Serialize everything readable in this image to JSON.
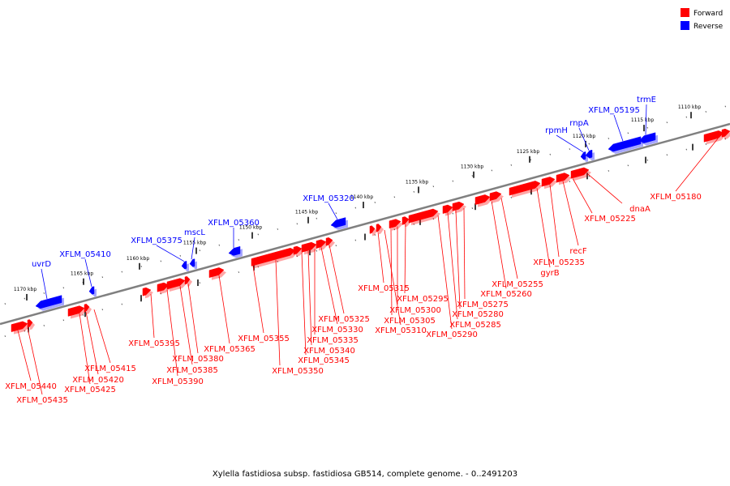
{
  "caption": "Xylella fastidiosa subsp. fastidiosa GB514, complete genome. - 0..2491203",
  "legend": [
    {
      "label": "Forward",
      "color": "#ff0000"
    },
    {
      "label": "Reverse",
      "color": "#0000ff"
    }
  ],
  "colors": {
    "forward": "#ff0000",
    "reverse": "#0000ff",
    "backbone": "#808080"
  },
  "ticks": [
    "1110 kbp",
    "1115 kbp",
    "1120 kbp",
    "1125 kbp",
    "1130 kbp",
    "1135 kbp",
    "1140 kbp",
    "1145 kbp",
    "1150 kbp",
    "1155 kbp",
    "1160 kbp",
    "1165 kbp",
    "1170 kbp"
  ],
  "forward_labels": [
    "XFLM_05180",
    "dnaA",
    "XFLM_05225",
    "recF",
    "XFLM_05235",
    "gyrB",
    "XFLM_05255",
    "XFLM_05260",
    "XFLM_05275",
    "XFLM_05280",
    "XFLM_05285",
    "XFLM_05290",
    "XFLM_05295",
    "XFLM_05300",
    "XFLM_05305",
    "XFLM_05310",
    "XFLM_05315",
    "XFLM_05325",
    "XFLM_05330",
    "XFLM_05335",
    "XFLM_05340",
    "XFLM_05345",
    "XFLM_05350",
    "XFLM_05355",
    "XFLM_05365",
    "XFLM_05380",
    "XFLM_05385",
    "XFLM_05390",
    "XFLM_05395",
    "XFLM_05415",
    "XFLM_05420",
    "XFLM_05425",
    "XFLM_05435",
    "XFLM_05440"
  ],
  "reverse_labels": [
    "trmE",
    "XFLM_05195",
    "rnpA",
    "rpmH",
    "XFLM_05320",
    "XFLM_05360",
    "mscL",
    "XFLM_05375",
    "XFLM_05410",
    "uvrD"
  ]
}
